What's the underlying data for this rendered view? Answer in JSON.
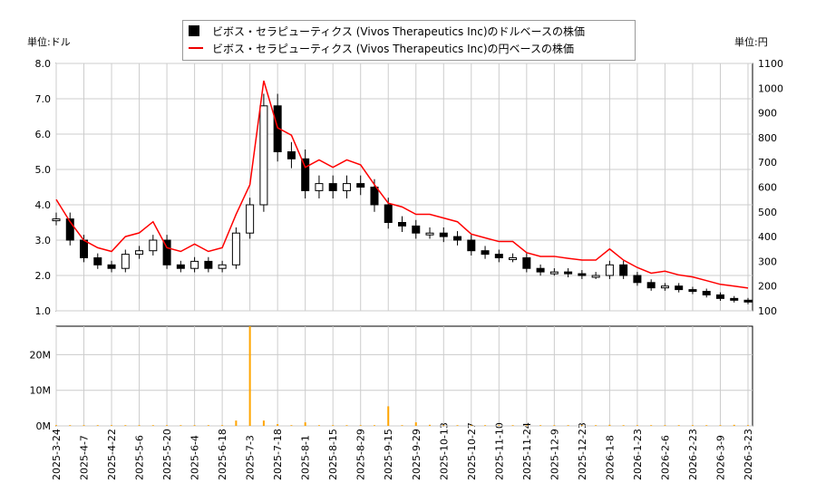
{
  "chart_data": {
    "type": "candlestick+line+bar",
    "left_unit_label": "単位:ドル",
    "right_unit_label": "単位:円",
    "legend": [
      "ビボス・セラピューティクス (Vivos Therapeutics Inc)のドルベースの株価",
      "ビボス・セラピューティクス (Vivos Therapeutics Inc)の円ベースの株価"
    ],
    "legend_placement": "top-center",
    "colors": {
      "usd": "#000000",
      "jpy": "#ff0000",
      "volume": "#ffa500",
      "grid": "#cccccc"
    },
    "ylim_left": [
      1.0,
      8.0
    ],
    "yticks_left": [
      "1.0",
      "2.0",
      "3.0",
      "4.0",
      "5.0",
      "6.0",
      "7.0",
      "8.0"
    ],
    "ylim_right": [
      100,
      1100
    ],
    "yticks_right": [
      "100",
      "200",
      "300",
      "400",
      "500",
      "600",
      "700",
      "800",
      "900",
      "1000",
      "1100"
    ],
    "volume_ylim_m": [
      0,
      28
    ],
    "volume_ticks": [
      "0M",
      "10M",
      "20M"
    ],
    "xticks": [
      "2025-3-24",
      "2025-4-7",
      "2025-4-22",
      "2025-5-6",
      "2025-5-20",
      "2025-6-4",
      "2025-6-18",
      "2025-7-3",
      "2025-7-18",
      "2025-8-1",
      "2025-8-15",
      "2025-8-29",
      "2025-9-15",
      "2025-9-29",
      "2025-10-13",
      "2025-10-27",
      "2025-11-10",
      "2025-11-24",
      "2025-12-9",
      "2025-12-23",
      "2026-1-8",
      "2026-1-23",
      "2026-2-6",
      "2026-2-23",
      "2026-3-9",
      "2026-3-23"
    ],
    "usd_weekly_close": [
      3.6,
      3.0,
      2.5,
      2.3,
      2.2,
      2.6,
      2.7,
      3.0,
      2.3,
      2.2,
      2.4,
      2.2,
      2.3,
      3.2,
      4.0,
      6.8,
      5.5,
      5.3,
      4.4,
      4.6,
      4.4,
      4.6,
      4.5,
      4.0,
      3.5,
      3.4,
      3.2,
      3.2,
      3.1,
      3.0,
      2.7,
      2.6,
      2.5,
      2.5,
      2.2,
      2.1,
      2.1,
      2.05,
      2.0,
      2.0,
      2.3,
      2.0,
      1.8,
      1.65,
      1.7,
      1.6,
      1.55,
      1.45,
      1.35,
      1.3,
      1.25
    ],
    "jpy_weekly_close": [
      550,
      460,
      385,
      355,
      340,
      400,
      415,
      460,
      355,
      340,
      370,
      340,
      355,
      490,
      610,
      1030,
      840,
      810,
      680,
      710,
      680,
      710,
      690,
      610,
      535,
      520,
      490,
      490,
      475,
      460,
      410,
      395,
      380,
      380,
      335,
      320,
      320,
      312,
      305,
      305,
      350,
      305,
      275,
      252,
      260,
      245,
      237,
      222,
      207,
      200,
      192
    ],
    "volume_weekly_m": [
      0.2,
      0.2,
      0.2,
      0.2,
      0.2,
      0.2,
      0.2,
      0.2,
      0.2,
      0.2,
      0.2,
      0.2,
      0.2,
      1.5,
      28,
      1.5,
      0.5,
      0.2,
      1.0,
      0.2,
      0.2,
      0.2,
      0.2,
      0.2,
      5.5,
      0.2,
      1.0,
      0.3,
      0.2,
      0.2,
      0.2,
      0.2,
      0.2,
      0.2,
      0.2,
      0.2,
      0.2,
      0.2,
      0.2,
      0.2,
      0.3,
      0.2,
      0.2,
      0.2,
      0.2,
      0.2,
      0.2,
      0.2,
      0.2,
      0.3,
      0.2
    ]
  }
}
